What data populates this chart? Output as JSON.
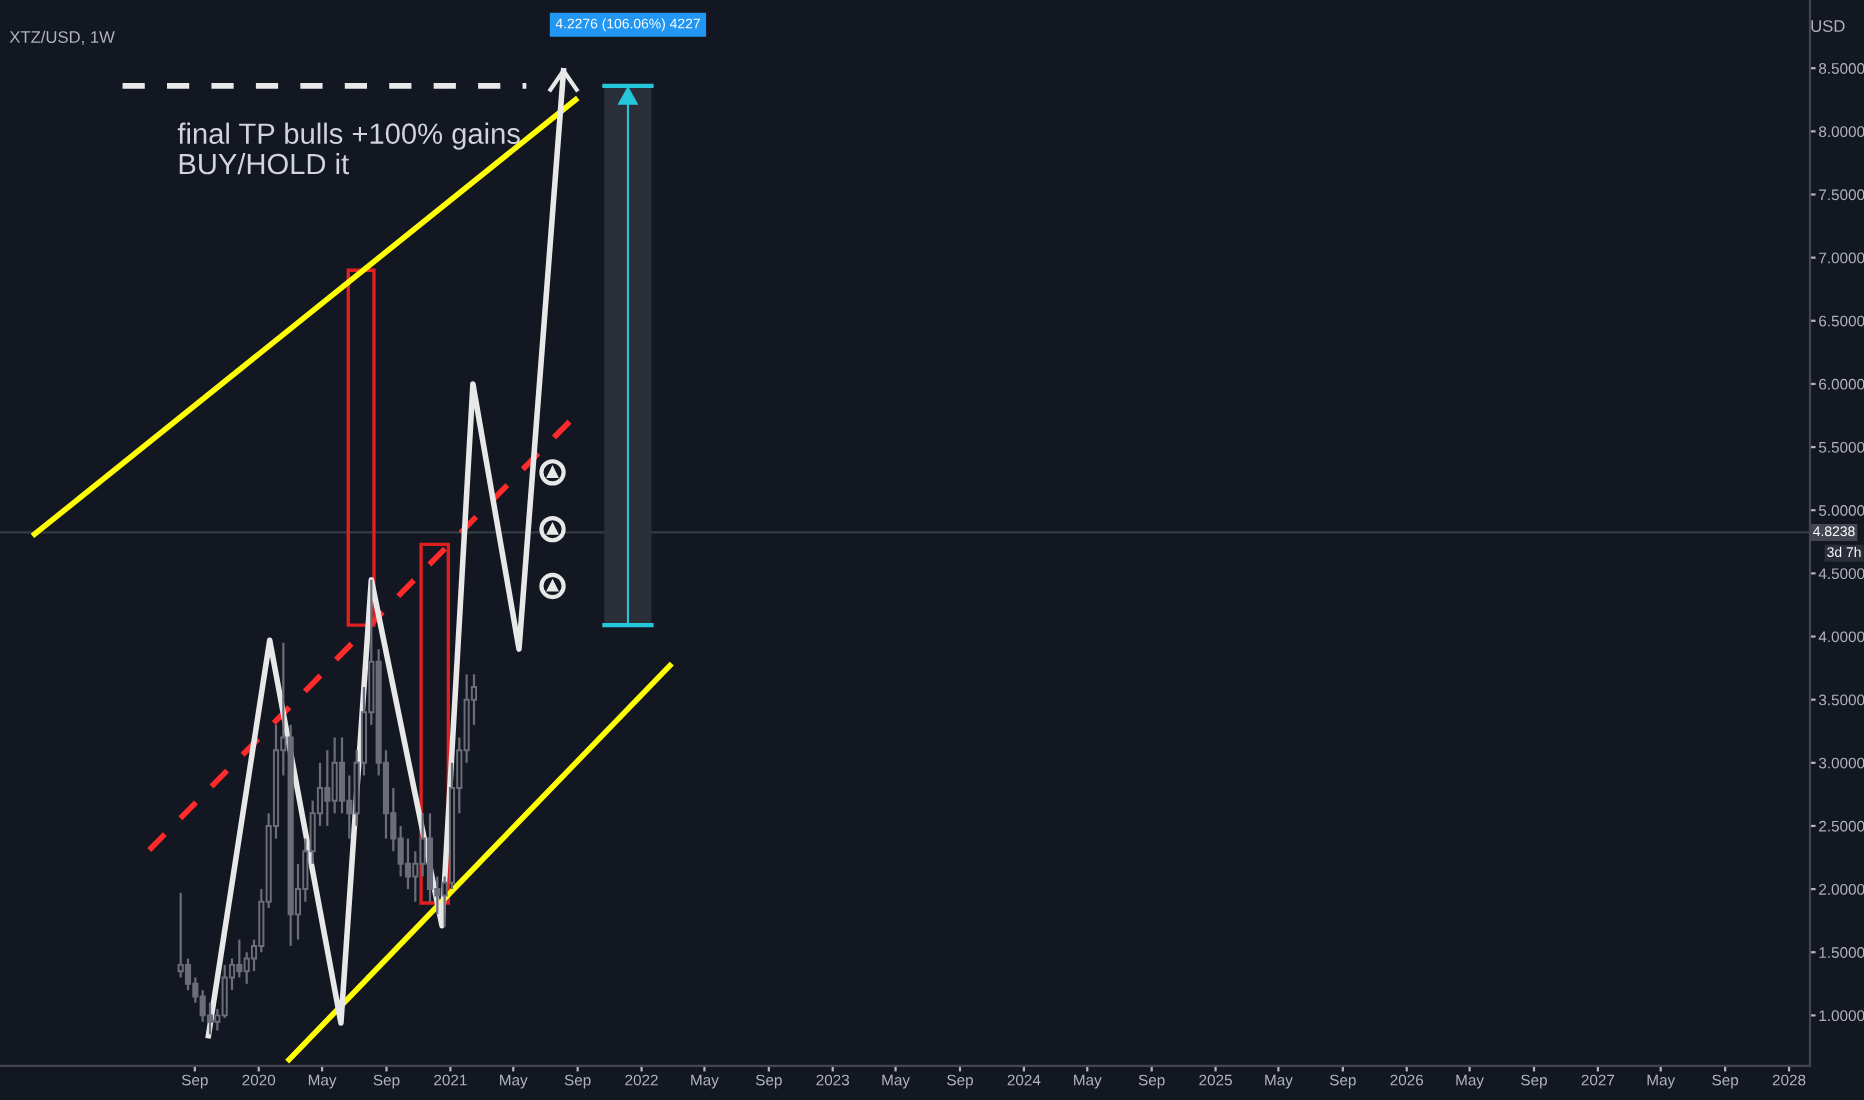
{
  "chart_data": {
    "type": "candlestick",
    "title": "XTZ/USD, 1W",
    "ylabel": "USD",
    "color": "#6b6e78",
    "x": [
      "2019-08-05",
      "2019-08-19",
      "2019-09-02",
      "2019-09-16",
      "2019-09-30",
      "2019-10-14",
      "2019-10-28",
      "2019-11-11",
      "2019-11-25",
      "2019-12-09",
      "2019-12-23",
      "2020-01-06",
      "2020-01-20",
      "2020-02-03",
      "2020-02-17",
      "2020-03-02",
      "2020-03-16",
      "2020-03-30",
      "2020-04-13",
      "2020-04-27",
      "2020-05-11",
      "2020-05-25",
      "2020-06-08",
      "2020-06-22",
      "2020-07-06",
      "2020-07-20",
      "2020-08-03",
      "2020-08-17",
      "2020-08-31",
      "2020-09-14",
      "2020-09-28",
      "2020-10-12",
      "2020-10-26",
      "2020-11-09",
      "2020-11-23",
      "2020-12-07",
      "2020-12-21",
      "2021-01-04",
      "2021-01-18",
      "2021-02-01",
      "2021-02-15"
    ],
    "ohlc": [
      [
        1.35,
        1.97,
        1.3,
        1.4
      ],
      [
        1.4,
        1.45,
        1.2,
        1.25
      ],
      [
        1.25,
        1.3,
        1.1,
        1.15
      ],
      [
        1.15,
        1.2,
        0.95,
        1.0
      ],
      [
        1.0,
        1.1,
        0.85,
        0.95
      ],
      [
        0.95,
        1.05,
        0.88,
        1.0
      ],
      [
        1.0,
        1.4,
        0.98,
        1.3
      ],
      [
        1.3,
        1.45,
        1.2,
        1.4
      ],
      [
        1.4,
        1.6,
        1.3,
        1.35
      ],
      [
        1.35,
        1.5,
        1.25,
        1.45
      ],
      [
        1.45,
        1.6,
        1.35,
        1.55
      ],
      [
        1.55,
        2.0,
        1.5,
        1.9
      ],
      [
        1.9,
        2.6,
        1.85,
        2.5
      ],
      [
        2.5,
        3.3,
        2.4,
        3.1
      ],
      [
        3.1,
        3.95,
        2.9,
        3.2
      ],
      [
        3.2,
        3.3,
        1.55,
        1.8
      ],
      [
        1.8,
        2.2,
        1.6,
        2.0
      ],
      [
        2.0,
        2.4,
        1.9,
        2.3
      ],
      [
        2.3,
        2.7,
        2.2,
        2.6
      ],
      [
        2.6,
        3.0,
        2.5,
        2.8
      ],
      [
        2.8,
        3.1,
        2.5,
        2.7
      ],
      [
        2.7,
        3.2,
        2.6,
        3.0
      ],
      [
        3.0,
        3.2,
        2.6,
        2.7
      ],
      [
        2.7,
        2.9,
        2.4,
        2.6
      ],
      [
        2.6,
        3.1,
        2.5,
        3.0
      ],
      [
        3.0,
        3.6,
        2.9,
        3.4
      ],
      [
        3.4,
        4.45,
        3.3,
        3.8
      ],
      [
        3.8,
        3.9,
        2.9,
        3.0
      ],
      [
        3.0,
        3.1,
        2.4,
        2.6
      ],
      [
        2.6,
        2.8,
        2.3,
        2.4
      ],
      [
        2.4,
        2.5,
        2.1,
        2.2
      ],
      [
        2.2,
        2.4,
        2.0,
        2.1
      ],
      [
        2.1,
        2.3,
        1.9,
        2.2
      ],
      [
        2.2,
        2.6,
        2.1,
        2.4
      ],
      [
        2.4,
        2.6,
        1.9,
        2.0
      ],
      [
        2.0,
        2.1,
        1.8,
        1.95
      ],
      [
        1.95,
        2.1,
        1.7,
        2.05
      ],
      [
        2.05,
        3.0,
        2.0,
        2.8
      ],
      [
        2.8,
        3.2,
        2.6,
        3.1
      ],
      [
        3.1,
        3.7,
        3.0,
        3.5
      ],
      [
        3.5,
        3.7,
        3.3,
        3.6
      ]
    ],
    "series": [
      {
        "type": "line",
        "color": "#ffff00",
        "line_style": "solid",
        "x": [
          "2018-10-30",
          "2021-08-28"
        ],
        "values": [
          4.81,
          8.25
        ]
      },
      {
        "type": "line",
        "color": "#ffff00",
        "line_style": "solid",
        "x": [
          "2020-02-28",
          "2022-02-24"
        ],
        "values": [
          0.65,
          3.77
        ]
      },
      {
        "type": "line",
        "color": "#ff2a2a",
        "line_style": "dashed",
        "x": [
          "2019-06-06",
          "2021-08-28"
        ],
        "values": [
          2.31,
          5.75
        ]
      },
      {
        "type": "line",
        "color": "#e8e8e8",
        "line_style": "dashed",
        "x": [
          "2019-04-16",
          "2021-05-26"
        ],
        "values": [
          8.36,
          8.36
        ]
      },
      {
        "type": "line",
        "color": "#e8e8e8",
        "line_style": "solid",
        "x": [
          "2019-09-27",
          "2020-01-22",
          "2020-06-06",
          "2020-08-03",
          "2020-12-16",
          "2021-02-13",
          "2021-05-12",
          "2021-08-05"
        ],
        "values": [
          0.84,
          3.97,
          0.94,
          4.45,
          1.71,
          6.0,
          3.9,
          8.48
        ]
      }
    ],
    "xlim": [
      "2018-08-25",
      "2028-02-10"
    ],
    "xticks": [
      {
        "value": "2019-09-01",
        "label": "Sep"
      },
      {
        "value": "2020-01-01",
        "label": "2020"
      },
      {
        "value": "2020-05-01",
        "label": "May"
      },
      {
        "value": "2020-09-01",
        "label": "Sep"
      },
      {
        "value": "2021-01-01",
        "label": "2021"
      },
      {
        "value": "2021-05-01",
        "label": "May"
      },
      {
        "value": "2021-09-01",
        "label": "Sep"
      },
      {
        "value": "2022-01-01",
        "label": "2022"
      },
      {
        "value": "2022-05-01",
        "label": "May"
      },
      {
        "value": "2022-09-01",
        "label": "Sep"
      },
      {
        "value": "2023-01-01",
        "label": "2023"
      },
      {
        "value": "2023-05-01",
        "label": "May"
      },
      {
        "value": "2023-09-01",
        "label": "Sep"
      },
      {
        "value": "2024-01-01",
        "label": "2024"
      },
      {
        "value": "2024-05-01",
        "label": "May"
      },
      {
        "value": "2024-09-01",
        "label": "Sep"
      },
      {
        "value": "2025-01-01",
        "label": "2025"
      },
      {
        "value": "2025-05-01",
        "label": "May"
      },
      {
        "value": "2025-09-01",
        "label": "Sep"
      },
      {
        "value": "2026-01-01",
        "label": "2026"
      },
      {
        "value": "2026-05-01",
        "label": "May"
      },
      {
        "value": "2026-09-01",
        "label": "Sep"
      },
      {
        "value": "2027-01-01",
        "label": "2027"
      },
      {
        "value": "2027-05-01",
        "label": "May"
      },
      {
        "value": "2027-09-01",
        "label": "Sep"
      },
      {
        "value": "2028-01-01",
        "label": "2028"
      }
    ],
    "ylim": [
      0.6,
      9.04
    ],
    "yticks": [
      {
        "value": 1.0,
        "label": "1.0000"
      },
      {
        "value": 1.5,
        "label": "1.5000"
      },
      {
        "value": 2.0,
        "label": "2.0000"
      },
      {
        "value": 2.5,
        "label": "2.5000"
      },
      {
        "value": 3.0,
        "label": "3.0000"
      },
      {
        "value": 3.5,
        "label": "3.5000"
      },
      {
        "value": 4.0,
        "label": "4.0000"
      },
      {
        "value": 4.5,
        "label": "4.5000"
      },
      {
        "value": 5.0,
        "label": "5.0000"
      },
      {
        "value": 5.5,
        "label": "5.5000"
      },
      {
        "value": 6.0,
        "label": "6.0000"
      },
      {
        "value": 6.5,
        "label": "6.5000"
      },
      {
        "value": 7.0,
        "label": "7.0000"
      },
      {
        "value": 7.5,
        "label": "7.5000"
      },
      {
        "value": 8.0,
        "label": "8.0000"
      },
      {
        "value": 8.5,
        "label": "8.5000"
      }
    ],
    "ref_lines": [
      {
        "axis": "y",
        "value": 4.8238,
        "label": "4.8238",
        "color": "#363a45"
      }
    ],
    "annotations": [
      "final TP bulls +100% gains\nBUY/HOLD it",
      "4.2276 (106.06%) 4227",
      "3d 7h"
    ],
    "grid": false
  }
}
